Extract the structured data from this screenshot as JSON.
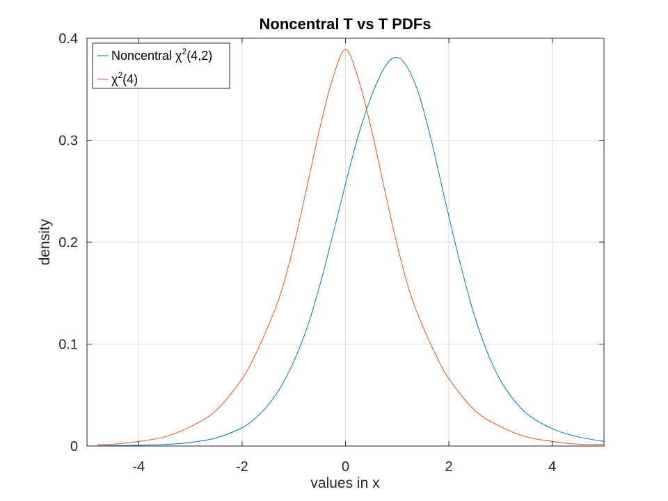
{
  "chart_data": {
    "type": "line",
    "title": "Noncentral T vs T PDFs",
    "xlabel": "values in x",
    "ylabel": "density",
    "xlim": [
      -5,
      5
    ],
    "ylim": [
      0,
      0.4
    ],
    "xticks": [
      -4,
      -2,
      0,
      2,
      4
    ],
    "xtick_labels": [
      "-4",
      "-2",
      "0",
      "2",
      "4"
    ],
    "yticks": [
      0,
      0.1,
      0.2,
      0.3,
      0.4
    ],
    "ytick_labels": [
      "0",
      "0.1",
      "0.2",
      "0.3",
      "0.4"
    ],
    "grid": true,
    "legend_position": "top-left",
    "series": [
      {
        "name": "Noncentral χ²(4,2)",
        "legend_main": "Noncentral χ",
        "legend_sup": "2",
        "legend_tail": "(4,2)",
        "color": "#0072BD",
        "x": [
          -4.8,
          -4,
          -3.5,
          -3,
          -2.5,
          -2,
          -1.75,
          -1.5,
          -1.25,
          -1,
          -0.75,
          -0.5,
          -0.25,
          0,
          0.25,
          0.5,
          0.75,
          0.95,
          1.15,
          1.4,
          1.65,
          1.9,
          2.2,
          2.5,
          2.8,
          3.1,
          3.5,
          4,
          4.5,
          5
        ],
        "y": [
          0.0002,
          0.0007,
          0.0015,
          0.0035,
          0.008,
          0.018,
          0.027,
          0.04,
          0.058,
          0.083,
          0.115,
          0.157,
          0.206,
          0.257,
          0.305,
          0.343,
          0.371,
          0.381,
          0.375,
          0.348,
          0.302,
          0.247,
          0.183,
          0.127,
          0.085,
          0.056,
          0.032,
          0.017,
          0.009,
          0.0045
        ]
      },
      {
        "name": "χ²(4)",
        "legend_main": "χ",
        "legend_sup": "2",
        "legend_tail": "(4)",
        "color": "#D95319",
        "x": [
          -4.8,
          -4.5,
          -4,
          -3.5,
          -3,
          -2.5,
          -2,
          -1.75,
          -1.5,
          -1.25,
          -1,
          -0.75,
          -0.5,
          -0.25,
          0,
          0.25,
          0.5,
          0.75,
          1,
          1.25,
          1.5,
          1.75,
          2,
          2.5,
          3,
          3.5,
          4,
          4.5,
          5
        ],
        "y": [
          0.0015,
          0.0018,
          0.0045,
          0.009,
          0.019,
          0.035,
          0.066,
          0.089,
          0.117,
          0.15,
          0.197,
          0.253,
          0.311,
          0.36,
          0.389,
          0.36,
          0.311,
          0.253,
          0.197,
          0.15,
          0.117,
          0.089,
          0.066,
          0.035,
          0.019,
          0.009,
          0.0045,
          0.0018,
          0.0015
        ]
      }
    ]
  }
}
